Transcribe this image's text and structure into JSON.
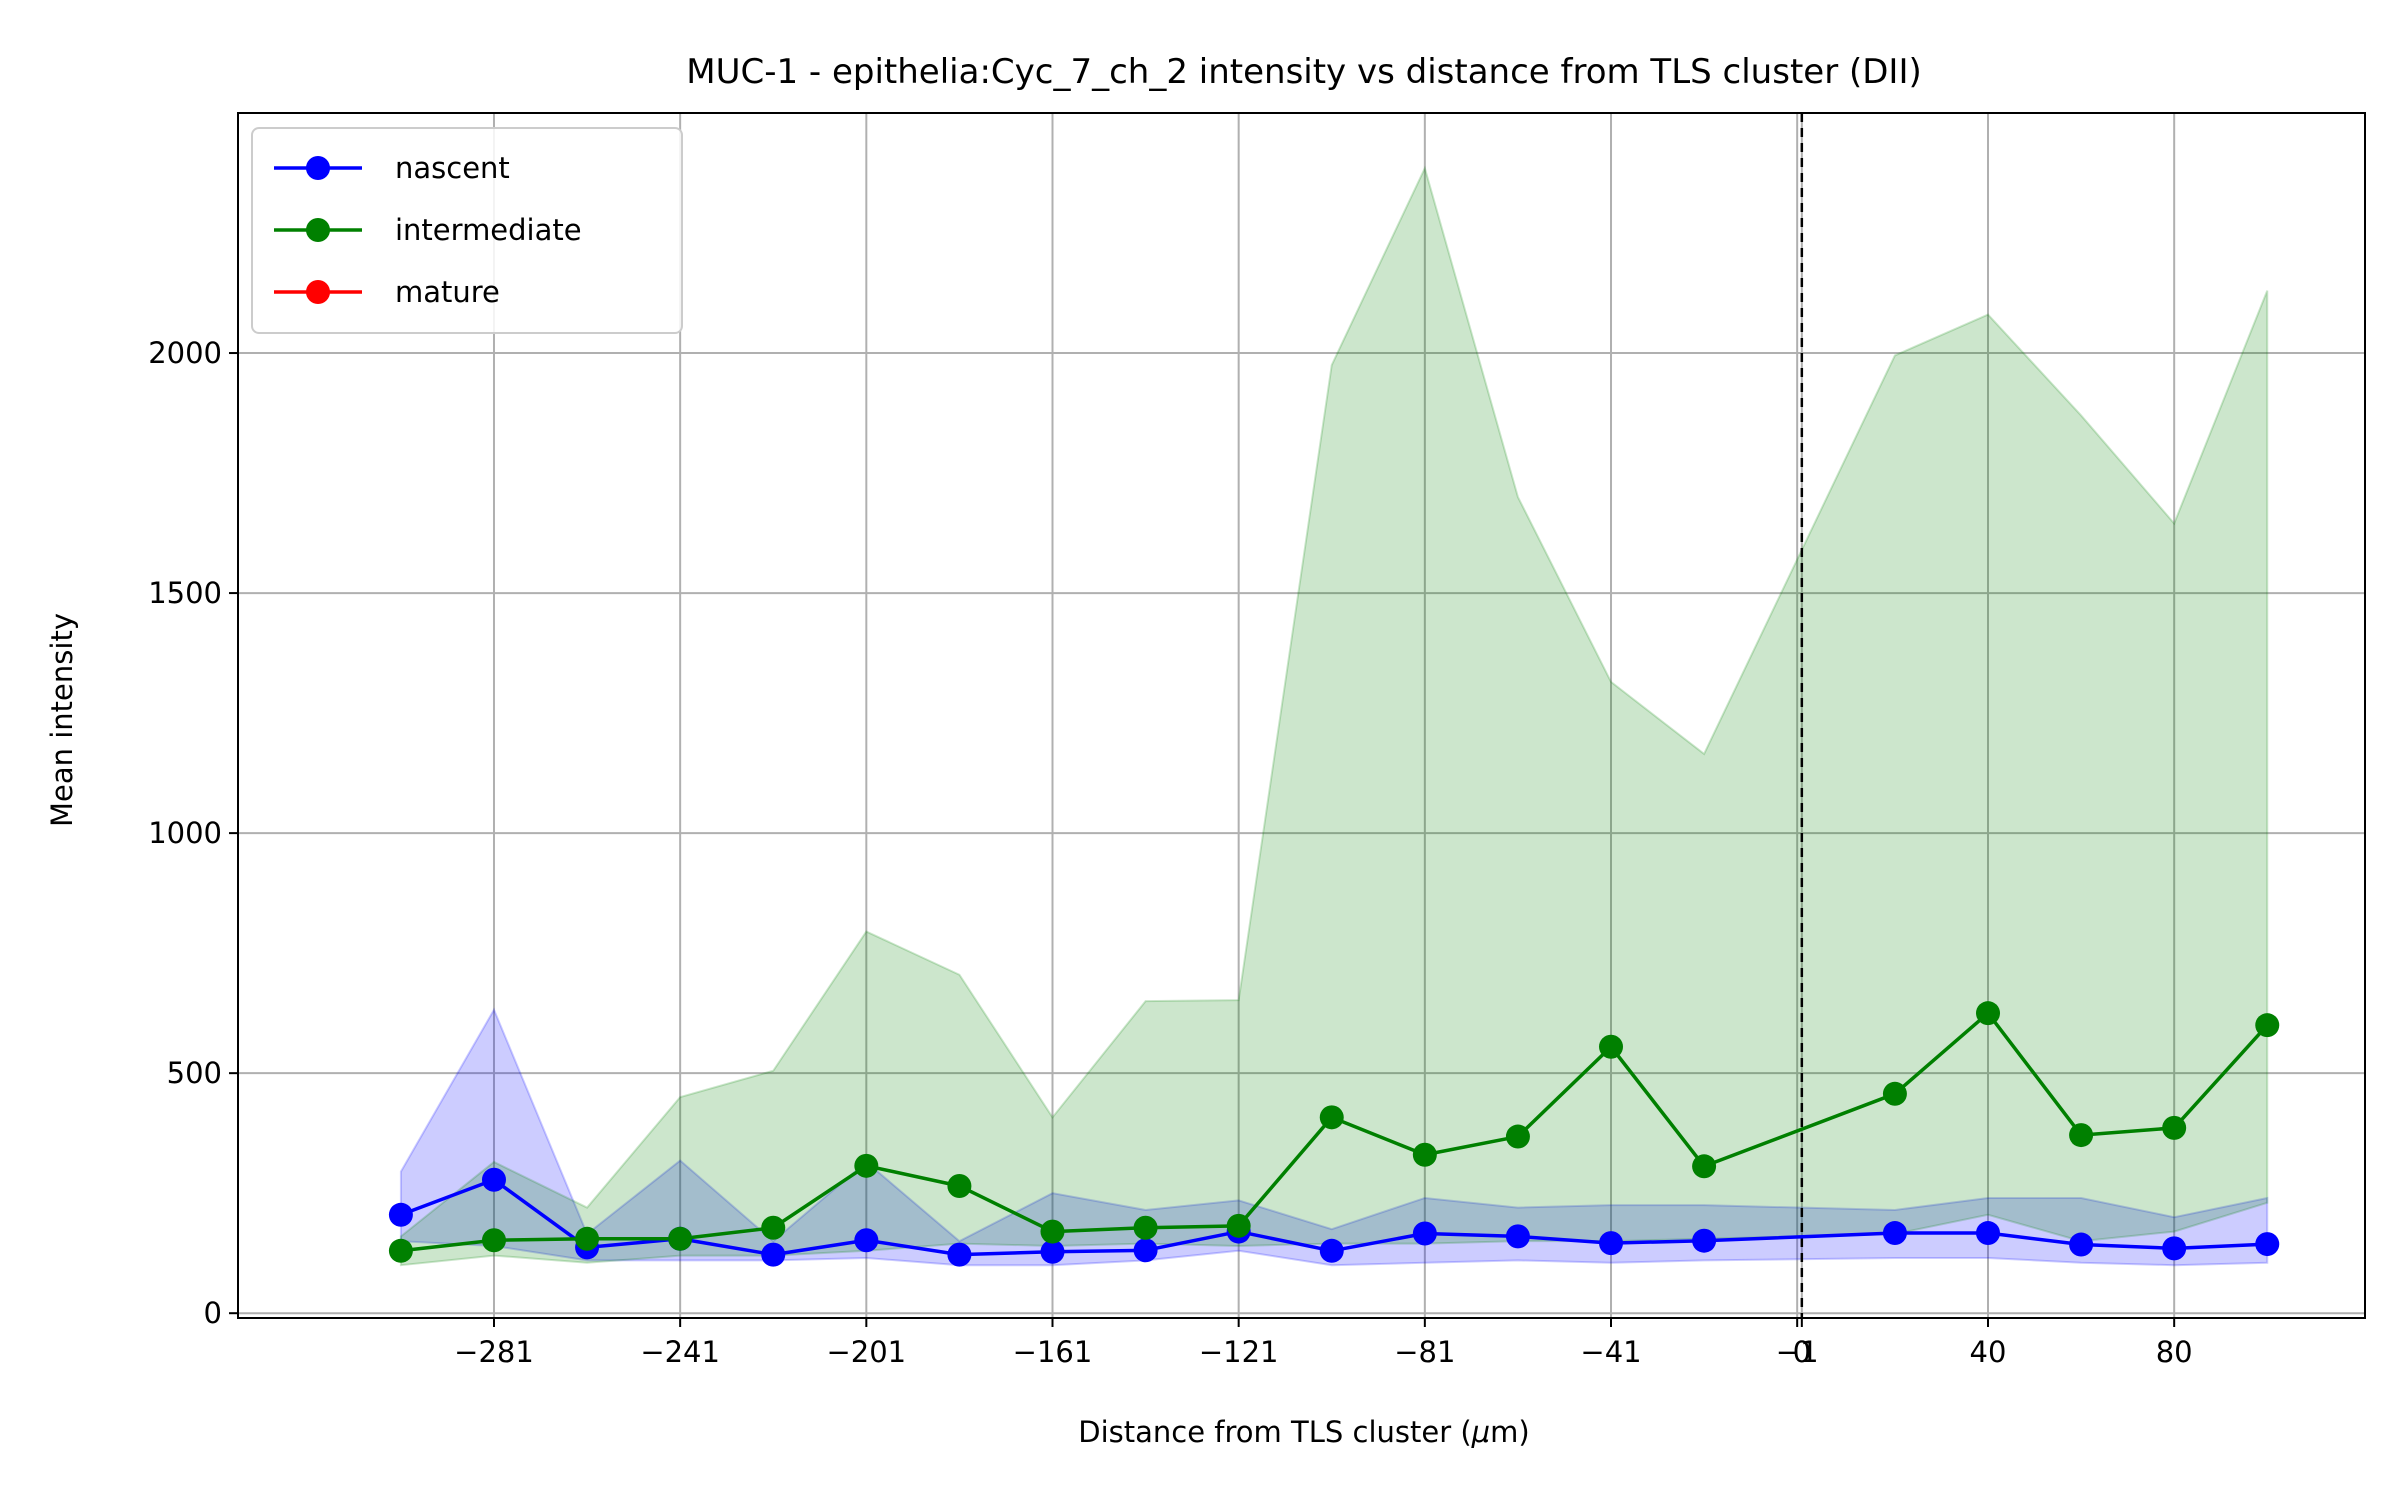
{
  "chart_data": {
    "type": "line",
    "title": "MUC-1 - epithelia:Cyc_7_ch_2 intensity vs distance from TLS cluster (DII)",
    "xlabel": "Distance from TLS cluster (",
    "xlabel_mu": "μ",
    "xlabel_unit": "m)",
    "ylabel": "Mean intensity",
    "xlim": [
      -336,
      121
    ],
    "ylim": [
      -10,
      2500
    ],
    "x_ticks": [
      -281,
      -241,
      -201,
      -161,
      -121,
      -81,
      -41,
      -1,
      0,
      40,
      80
    ],
    "x_tick_labels": [
      "−281",
      "−241",
      "−201",
      "−161",
      "−121",
      "−81",
      "−41",
      "−1",
      "0",
      "40",
      "80"
    ],
    "y_ticks": [
      0,
      500,
      1000,
      1500,
      2000
    ],
    "y_tick_labels": [
      "0",
      "500",
      "1000",
      "1500",
      "2000"
    ],
    "grid": true,
    "legend_position": "top-left",
    "reference_line_x": 0,
    "x": [
      -301,
      -281,
      -261,
      -241,
      -221,
      -201,
      -181,
      -161,
      -141,
      -121,
      -101,
      -81,
      -61,
      -41,
      -21,
      0,
      20,
      40,
      60,
      80,
      100
    ],
    "series": [
      {
        "name": "nascent",
        "color": "#0000ff",
        "fill": "#0000ff",
        "x": [
          -301,
          -281,
          -261,
          -241,
          -221,
          -201,
          -181,
          -161,
          -141,
          -121,
          -101,
          -81,
          -61,
          -41,
          -21,
          20,
          40,
          60,
          80,
          100
        ],
        "values": [
          205,
          278,
          137,
          155,
          122,
          152,
          122,
          128,
          131,
          170,
          130,
          166,
          160,
          146,
          151,
          167,
          167,
          143,
          135,
          144
        ],
        "band_low": [
          150,
          140,
          110,
          110,
          110,
          115,
          100,
          100,
          110,
          130,
          100,
          105,
          110,
          105,
          110,
          115,
          115,
          105,
          100,
          105
        ],
        "band_high": [
          295,
          632,
          165,
          318,
          150,
          315,
          150,
          250,
          215,
          235,
          175,
          240,
          220,
          225,
          225,
          215,
          240,
          240,
          200,
          240
        ]
      },
      {
        "name": "intermediate",
        "color": "#008000",
        "fill": "#008000",
        "x": [
          -301,
          -281,
          -261,
          -241,
          -221,
          -201,
          -181,
          -161,
          -141,
          -121,
          -101,
          -81,
          -61,
          -41,
          -21,
          20,
          40,
          60,
          80,
          100
        ],
        "values": [
          130,
          152,
          155,
          155,
          178,
          307,
          265,
          170,
          178,
          182,
          408,
          330,
          368,
          555,
          306,
          457,
          625,
          371,
          386,
          600
        ],
        "band_low": [
          100,
          120,
          105,
          120,
          120,
          130,
          145,
          140,
          145,
          140,
          145,
          145,
          150,
          150,
          155,
          165,
          205,
          150,
          170,
          230
        ],
        "band_high": [
          160,
          315,
          220,
          450,
          505,
          795,
          705,
          408,
          650,
          652,
          1975,
          2385,
          1700,
          1315,
          1165,
          1995,
          2080,
          1870,
          1645,
          2130
        ]
      },
      {
        "name": "mature",
        "color": "#ff0000",
        "fill": "#ff0000",
        "x": [],
        "values": [],
        "band_low": [],
        "band_high": []
      }
    ]
  }
}
